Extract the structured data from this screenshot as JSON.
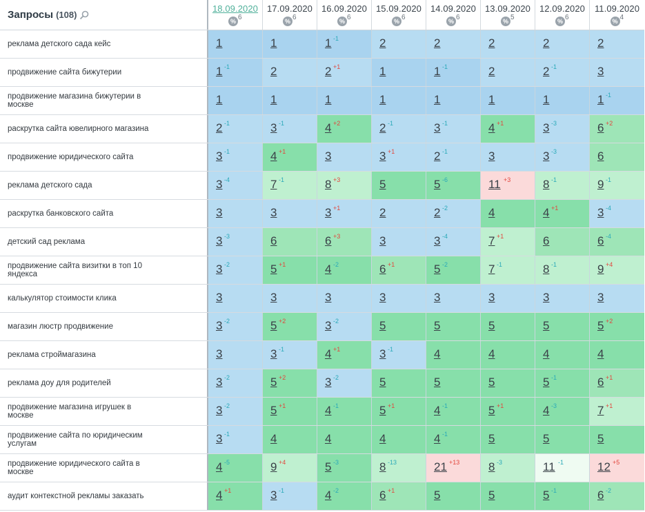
{
  "header": {
    "title": "Запросы",
    "count": "(108)",
    "search_icon": "search-icon",
    "dates": [
      {
        "date": "18.09.2020",
        "badge": "%",
        "percent": "6",
        "active": true
      },
      {
        "date": "17.09.2020",
        "badge": "%",
        "percent": "6",
        "active": false
      },
      {
        "date": "16.09.2020",
        "badge": "%",
        "percent": "6",
        "active": false
      },
      {
        "date": "15.09.2020",
        "badge": "%",
        "percent": "6",
        "active": false
      },
      {
        "date": "14.09.2020",
        "badge": "%",
        "percent": "6",
        "active": false
      },
      {
        "date": "13.09.2020",
        "badge": "%",
        "percent": "5",
        "active": false
      },
      {
        "date": "12.09.2020",
        "badge": "%",
        "percent": "6",
        "active": false
      },
      {
        "date": "11.09.2020",
        "badge": "%",
        "percent": "4",
        "active": false
      }
    ]
  },
  "colors": {
    "up": "#2aa9b8",
    "down": "#e2463c",
    "date_active": "#4fb09a"
  },
  "rows": [
    {
      "query": "реклама детского сада кейс",
      "cells": [
        {
          "p": "1",
          "d": "",
          "c": "b1"
        },
        {
          "p": "1",
          "d": "",
          "c": "b1"
        },
        {
          "p": "1",
          "d": "-1",
          "c": "b1"
        },
        {
          "p": "2",
          "d": "",
          "c": "b2"
        },
        {
          "p": "2",
          "d": "",
          "c": "b2"
        },
        {
          "p": "2",
          "d": "",
          "c": "b2"
        },
        {
          "p": "2",
          "d": "",
          "c": "b2"
        },
        {
          "p": "2",
          "d": "",
          "c": "b2"
        }
      ]
    },
    {
      "query": "продвижение сайта бижутерии",
      "cells": [
        {
          "p": "1",
          "d": "-1",
          "c": "b1"
        },
        {
          "p": "2",
          "d": "",
          "c": "b2"
        },
        {
          "p": "2",
          "d": "+1",
          "c": "b2"
        },
        {
          "p": "1",
          "d": "",
          "c": "b1"
        },
        {
          "p": "1",
          "d": "-1",
          "c": "b1"
        },
        {
          "p": "2",
          "d": "",
          "c": "b2"
        },
        {
          "p": "2",
          "d": "-1",
          "c": "b2"
        },
        {
          "p": "3",
          "d": "",
          "c": "b2"
        }
      ]
    },
    {
      "query": "продвижение магазина бижутерии в москве",
      "cells": [
        {
          "p": "1",
          "d": "",
          "c": "b1"
        },
        {
          "p": "1",
          "d": "",
          "c": "b1"
        },
        {
          "p": "1",
          "d": "",
          "c": "b1"
        },
        {
          "p": "1",
          "d": "",
          "c": "b1"
        },
        {
          "p": "1",
          "d": "",
          "c": "b1"
        },
        {
          "p": "1",
          "d": "",
          "c": "b1"
        },
        {
          "p": "1",
          "d": "",
          "c": "b1"
        },
        {
          "p": "1",
          "d": "-1",
          "c": "b1"
        }
      ]
    },
    {
      "query": "раскрутка сайта ювелирного магазина",
      "cells": [
        {
          "p": "2",
          "d": "-1",
          "c": "b2"
        },
        {
          "p": "3",
          "d": "-1",
          "c": "b2"
        },
        {
          "p": "4",
          "d": "+2",
          "c": "g1"
        },
        {
          "p": "2",
          "d": "-1",
          "c": "b2"
        },
        {
          "p": "3",
          "d": "-1",
          "c": "b2"
        },
        {
          "p": "4",
          "d": "+1",
          "c": "g1"
        },
        {
          "p": "3",
          "d": "-3",
          "c": "b2"
        },
        {
          "p": "6",
          "d": "+2",
          "c": "g2"
        }
      ]
    },
    {
      "query": "продвижение юридического сайта",
      "cells": [
        {
          "p": "3",
          "d": "-1",
          "c": "b2"
        },
        {
          "p": "4",
          "d": "+1",
          "c": "g1"
        },
        {
          "p": "3",
          "d": "",
          "c": "b2"
        },
        {
          "p": "3",
          "d": "+1",
          "c": "b2"
        },
        {
          "p": "2",
          "d": "-1",
          "c": "b2"
        },
        {
          "p": "3",
          "d": "",
          "c": "b2"
        },
        {
          "p": "3",
          "d": "-3",
          "c": "b2"
        },
        {
          "p": "6",
          "d": "",
          "c": "g2"
        }
      ]
    },
    {
      "query": "реклама детского сада",
      "cells": [
        {
          "p": "3",
          "d": "-4",
          "c": "b2"
        },
        {
          "p": "7",
          "d": "-1",
          "c": "g3"
        },
        {
          "p": "8",
          "d": "+3",
          "c": "g3"
        },
        {
          "p": "5",
          "d": "",
          "c": "g1"
        },
        {
          "p": "5",
          "d": "-6",
          "c": "g1"
        },
        {
          "p": "11",
          "d": "+3",
          "c": "p"
        },
        {
          "p": "8",
          "d": "-1",
          "c": "g3"
        },
        {
          "p": "9",
          "d": "-1",
          "c": "g3"
        }
      ]
    },
    {
      "query": "раскрутка банковского сайта",
      "cells": [
        {
          "p": "3",
          "d": "",
          "c": "b2"
        },
        {
          "p": "3",
          "d": "",
          "c": "b2"
        },
        {
          "p": "3",
          "d": "+1",
          "c": "b2"
        },
        {
          "p": "2",
          "d": "",
          "c": "b2"
        },
        {
          "p": "2",
          "d": "-2",
          "c": "b2"
        },
        {
          "p": "4",
          "d": "",
          "c": "g1"
        },
        {
          "p": "4",
          "d": "+1",
          "c": "g1"
        },
        {
          "p": "3",
          "d": "-4",
          "c": "b2"
        }
      ]
    },
    {
      "query": "детский сад реклама",
      "cells": [
        {
          "p": "3",
          "d": "-3",
          "c": "b2"
        },
        {
          "p": "6",
          "d": "",
          "c": "g2"
        },
        {
          "p": "6",
          "d": "+3",
          "c": "g2"
        },
        {
          "p": "3",
          "d": "",
          "c": "b2"
        },
        {
          "p": "3",
          "d": "-4",
          "c": "b2"
        },
        {
          "p": "7",
          "d": "+1",
          "c": "g3"
        },
        {
          "p": "6",
          "d": "",
          "c": "g2"
        },
        {
          "p": "6",
          "d": "-4",
          "c": "g2"
        }
      ]
    },
    {
      "query": "продвижение сайта визитки в топ 10 яндекса",
      "cells": [
        {
          "p": "3",
          "d": "-2",
          "c": "b2"
        },
        {
          "p": "5",
          "d": "+1",
          "c": "g1"
        },
        {
          "p": "4",
          "d": "-2",
          "c": "g1"
        },
        {
          "p": "6",
          "d": "+1",
          "c": "g2"
        },
        {
          "p": "5",
          "d": "-2",
          "c": "g1"
        },
        {
          "p": "7",
          "d": "-1",
          "c": "g3"
        },
        {
          "p": "8",
          "d": "-1",
          "c": "g3"
        },
        {
          "p": "9",
          "d": "+4",
          "c": "g3"
        }
      ]
    },
    {
      "query": "калькулятор стоимости клика",
      "cells": [
        {
          "p": "3",
          "d": "",
          "c": "b2"
        },
        {
          "p": "3",
          "d": "",
          "c": "b2"
        },
        {
          "p": "3",
          "d": "",
          "c": "b2"
        },
        {
          "p": "3",
          "d": "",
          "c": "b2"
        },
        {
          "p": "3",
          "d": "",
          "c": "b2"
        },
        {
          "p": "3",
          "d": "",
          "c": "b2"
        },
        {
          "p": "3",
          "d": "",
          "c": "b2"
        },
        {
          "p": "3",
          "d": "",
          "c": "b2"
        }
      ]
    },
    {
      "query": "магазин люстр продвижение",
      "cells": [
        {
          "p": "3",
          "d": "-2",
          "c": "b2"
        },
        {
          "p": "5",
          "d": "+2",
          "c": "g1"
        },
        {
          "p": "3",
          "d": "-2",
          "c": "b2"
        },
        {
          "p": "5",
          "d": "",
          "c": "g1"
        },
        {
          "p": "5",
          "d": "",
          "c": "g1"
        },
        {
          "p": "5",
          "d": "",
          "c": "g1"
        },
        {
          "p": "5",
          "d": "",
          "c": "g1"
        },
        {
          "p": "5",
          "d": "+2",
          "c": "g1"
        }
      ]
    },
    {
      "query": "реклама строймагазина",
      "cells": [
        {
          "p": "3",
          "d": "",
          "c": "b2"
        },
        {
          "p": "3",
          "d": "-1",
          "c": "b2"
        },
        {
          "p": "4",
          "d": "+1",
          "c": "g1"
        },
        {
          "p": "3",
          "d": "-1",
          "c": "b2"
        },
        {
          "p": "4",
          "d": "",
          "c": "g1"
        },
        {
          "p": "4",
          "d": "",
          "c": "g1"
        },
        {
          "p": "4",
          "d": "",
          "c": "g1"
        },
        {
          "p": "4",
          "d": "",
          "c": "g1"
        }
      ]
    },
    {
      "query": "реклама доу для родителей",
      "cells": [
        {
          "p": "3",
          "d": "-2",
          "c": "b2"
        },
        {
          "p": "5",
          "d": "+2",
          "c": "g1"
        },
        {
          "p": "3",
          "d": "-2",
          "c": "b2"
        },
        {
          "p": "5",
          "d": "",
          "c": "g1"
        },
        {
          "p": "5",
          "d": "",
          "c": "g1"
        },
        {
          "p": "5",
          "d": "",
          "c": "g1"
        },
        {
          "p": "5",
          "d": "-1",
          "c": "g1"
        },
        {
          "p": "6",
          "d": "+1",
          "c": "g2"
        }
      ]
    },
    {
      "query": "продвижение магазина игрушек в москве",
      "cells": [
        {
          "p": "3",
          "d": "-2",
          "c": "b2"
        },
        {
          "p": "5",
          "d": "+1",
          "c": "g1"
        },
        {
          "p": "4",
          "d": "-1",
          "c": "g1"
        },
        {
          "p": "5",
          "d": "+1",
          "c": "g1"
        },
        {
          "p": "4",
          "d": "-1",
          "c": "g1"
        },
        {
          "p": "5",
          "d": "+1",
          "c": "g1"
        },
        {
          "p": "4",
          "d": "-3",
          "c": "g1"
        },
        {
          "p": "7",
          "d": "+1",
          "c": "g3"
        }
      ]
    },
    {
      "query": "продвижение сайта по юридическим услугам",
      "cells": [
        {
          "p": "3",
          "d": "-1",
          "c": "b2"
        },
        {
          "p": "4",
          "d": "",
          "c": "g1"
        },
        {
          "p": "4",
          "d": "",
          "c": "g1"
        },
        {
          "p": "4",
          "d": "",
          "c": "g1"
        },
        {
          "p": "4",
          "d": "-1",
          "c": "g1"
        },
        {
          "p": "5",
          "d": "",
          "c": "g1"
        },
        {
          "p": "5",
          "d": "",
          "c": "g1"
        },
        {
          "p": "5",
          "d": "",
          "c": "g1"
        }
      ]
    },
    {
      "query": "продвижение юридического сайта в москве",
      "cells": [
        {
          "p": "4",
          "d": "-5",
          "c": "g1"
        },
        {
          "p": "9",
          "d": "+4",
          "c": "g3"
        },
        {
          "p": "5",
          "d": "-3",
          "c": "g1"
        },
        {
          "p": "8",
          "d": "-13",
          "c": "g3"
        },
        {
          "p": "21",
          "d": "+13",
          "c": "p"
        },
        {
          "p": "8",
          "d": "-3",
          "c": "g3"
        },
        {
          "p": "11",
          "d": "-1",
          "c": "w"
        },
        {
          "p": "12",
          "d": "+5",
          "c": "p"
        }
      ]
    },
    {
      "query": "аудит контекстной рекламы заказать",
      "cells": [
        {
          "p": "4",
          "d": "+1",
          "c": "g1"
        },
        {
          "p": "3",
          "d": "-1",
          "c": "b2"
        },
        {
          "p": "4",
          "d": "-2",
          "c": "g1"
        },
        {
          "p": "6",
          "d": "+1",
          "c": "g2"
        },
        {
          "p": "5",
          "d": "",
          "c": "g1"
        },
        {
          "p": "5",
          "d": "",
          "c": "g1"
        },
        {
          "p": "5",
          "d": "-1",
          "c": "g1"
        },
        {
          "p": "6",
          "d": "-2",
          "c": "g2"
        }
      ]
    }
  ]
}
